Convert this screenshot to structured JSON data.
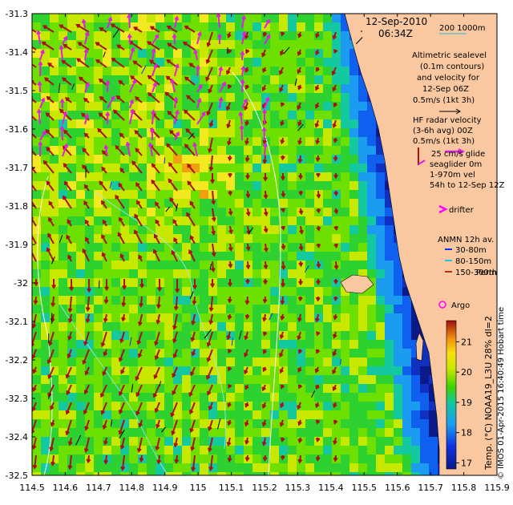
{
  "map": {
    "date": "12-Sep-2010",
    "time": "06:34Z",
    "scale_text": "200  1000m",
    "lon_ticks": [
      "114.5",
      "114.6",
      "114.7",
      "114.8",
      "114.9",
      "115",
      "115.1",
      "115.2",
      "115.3",
      "115.4",
      "115.5",
      "115.6",
      "115.7",
      "115.8",
      "115.9"
    ],
    "lat_ticks": [
      "-31.3",
      "-31.4",
      "-31.5",
      "-31.6",
      "-31.7",
      "-31.8",
      "-31.9",
      "-32",
      "-32.1",
      "-32.2",
      "-32.3",
      "-32.4",
      "-32.5"
    ],
    "legend": {
      "altimetric": [
        "Altimetric sealevel",
        "(0.1m contours)",
        "and velocity for",
        "12-Sep 06Z",
        "0.5m/s (1kt 3h)"
      ],
      "hf_radar": [
        "HF radar velocity",
        "(3-6h avg) 00Z",
        "0.5m/s (1kt 3h)"
      ],
      "seaglider": [
        "25 cm/s glide",
        "seaglider 0m",
        "1-970m vel",
        "54h to 12-Sep 12Z"
      ],
      "drifter": "drifter",
      "anmn": [
        "ANMN 12h av.",
        "30-80m",
        "80-150m",
        "150-300m"
      ],
      "perth": "Perth",
      "argo": "Argo"
    },
    "colorbar": {
      "ticks": [
        "17",
        "18",
        "19",
        "20",
        "21"
      ],
      "label": "Temp. (°C) NOAA19_L3U 28% dl=2"
    },
    "credit": "© IMOS 01-Apr-2015 16:40:49 Hobart time",
    "colors": {
      "land": "#fac8a0",
      "hf_arrow": "#aa1111",
      "alt_arrow": "#e020e0",
      "anmn_30": "#1030ff",
      "anmn_80": "#20c0e0",
      "anmn_150": "#c03010",
      "drifter": "#ff00ff"
    }
  }
}
